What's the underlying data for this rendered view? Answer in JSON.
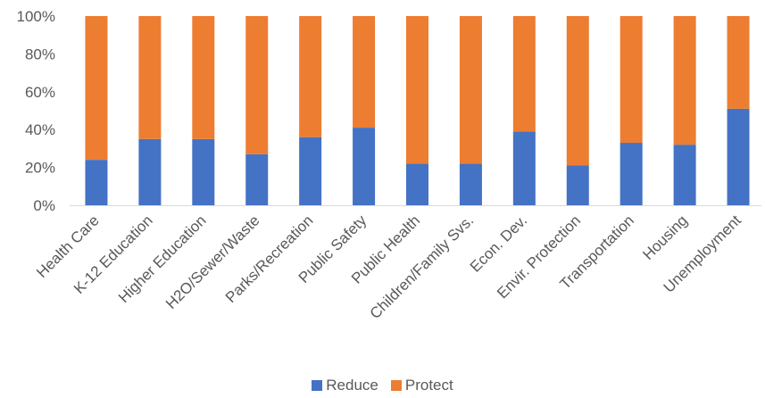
{
  "chart_data": {
    "type": "bar",
    "stacked": true,
    "percent": true,
    "categories": [
      "Health Care",
      "K-12 Education",
      "Higher Education",
      "H2O/Sewer/Waste",
      "Parks/Recreation",
      "Public Safety",
      "Public Health",
      "Children/Family Svs.",
      "Econ. Dev.",
      "Envir. Protection",
      "Transportation",
      "Housing",
      "Unemployment"
    ],
    "series": [
      {
        "name": "Reduce",
        "color": "#4472C4",
        "values": [
          24,
          35,
          35,
          27,
          36,
          41,
          22,
          22,
          39,
          21,
          33,
          32,
          51
        ]
      },
      {
        "name": "Protect",
        "color": "#ED7D31",
        "values": [
          76,
          65,
          65,
          73,
          64,
          59,
          78,
          78,
          61,
          79,
          67,
          68,
          49
        ]
      }
    ],
    "ylim": [
      0,
      100
    ],
    "yticks": [
      "0%",
      "20%",
      "40%",
      "60%",
      "80%",
      "100%"
    ],
    "grid": false,
    "legend_position": "bottom"
  }
}
